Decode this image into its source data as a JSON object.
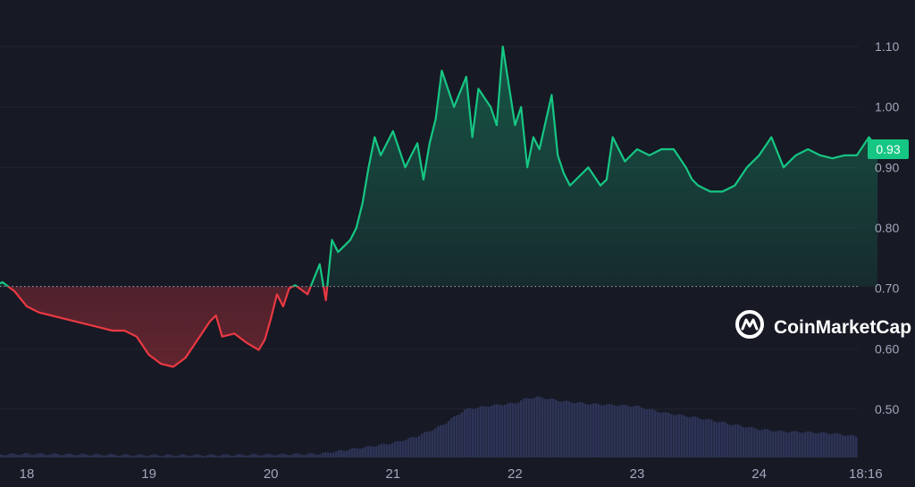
{
  "brand": {
    "name": "CoinMarketCap",
    "logo_icon": "coinmarketcap-logo-icon"
  },
  "colors": {
    "background": "#171924",
    "up": "#16c784",
    "down": "#ea3943",
    "volume": "#2d3457",
    "baseline": "#a1a7bb",
    "grid": "#222531",
    "badge": "#16c784"
  },
  "chart_data": {
    "type": "line",
    "title": "",
    "xlabel": "",
    "ylabel": "",
    "ylim": [
      0.42,
      1.14
    ],
    "yticks": [
      "1.10",
      "1.00",
      "0.90",
      "0.80",
      "0.70",
      "0.60",
      "0.50"
    ],
    "xticks": [
      "18",
      "19",
      "20",
      "21",
      "22",
      "23",
      "24",
      "18:16"
    ],
    "baseline": 0.703,
    "current_price": "0.93",
    "grid": true,
    "series": [
      {
        "x": [
          17.75,
          17.8,
          17.9,
          18.0,
          18.1,
          18.2,
          18.3,
          18.4,
          18.5,
          18.6,
          18.7,
          18.8,
          18.9,
          19.0,
          19.1,
          19.2,
          19.3,
          19.4,
          19.5,
          19.55,
          19.6,
          19.7,
          19.8,
          19.9,
          19.95,
          20.0,
          20.05,
          20.1,
          20.15,
          20.2,
          20.3,
          20.4,
          20.45,
          20.5,
          20.55,
          20.6,
          20.65,
          20.7,
          20.75,
          20.8,
          20.85,
          20.9,
          21.0,
          21.1,
          21.2,
          21.25,
          21.3,
          21.35,
          21.4,
          21.5,
          21.6,
          21.65,
          21.7,
          21.8,
          21.85,
          21.9,
          22.0,
          22.05,
          22.1,
          22.15,
          22.2,
          22.3,
          22.35,
          22.4,
          22.45,
          22.5,
          22.6,
          22.7,
          22.75,
          22.8,
          22.9,
          23.0,
          23.1,
          23.2,
          23.3,
          23.4,
          23.45,
          23.5,
          23.6,
          23.7,
          23.8,
          23.9,
          24.0,
          24.1,
          24.2,
          24.3,
          24.4,
          24.5,
          24.6,
          24.7,
          24.8,
          24.9,
          24.97
        ],
        "values": [
          0.705,
          0.71,
          0.695,
          0.67,
          0.66,
          0.655,
          0.65,
          0.645,
          0.64,
          0.635,
          0.63,
          0.63,
          0.62,
          0.59,
          0.575,
          0.57,
          0.585,
          0.615,
          0.645,
          0.655,
          0.62,
          0.625,
          0.61,
          0.598,
          0.615,
          0.65,
          0.69,
          0.67,
          0.7,
          0.705,
          0.69,
          0.74,
          0.68,
          0.78,
          0.76,
          0.77,
          0.78,
          0.8,
          0.84,
          0.9,
          0.95,
          0.92,
          0.96,
          0.9,
          0.94,
          0.88,
          0.94,
          0.98,
          1.06,
          1.0,
          1.05,
          0.95,
          1.03,
          1.0,
          0.97,
          1.1,
          0.97,
          1.0,
          0.9,
          0.95,
          0.93,
          1.02,
          0.92,
          0.89,
          0.87,
          0.88,
          0.9,
          0.87,
          0.88,
          0.95,
          0.91,
          0.93,
          0.92,
          0.93,
          0.93,
          0.9,
          0.88,
          0.87,
          0.86,
          0.86,
          0.87,
          0.9,
          0.92,
          0.95,
          0.9,
          0.92,
          0.93,
          0.92,
          0.915,
          0.92,
          0.92,
          0.95,
          0.93
        ]
      }
    ],
    "volume": {
      "x": [
        17.75,
        18.0,
        18.5,
        19.0,
        19.5,
        20.0,
        20.4,
        20.6,
        20.8,
        21.0,
        21.2,
        21.4,
        21.6,
        21.8,
        22.0,
        22.1,
        22.2,
        22.4,
        22.6,
        22.8,
        23.0,
        23.2,
        23.4,
        23.6,
        23.8,
        24.0,
        24.2,
        24.4,
        24.6,
        24.8,
        24.97
      ],
      "values": [
        0.425,
        0.426,
        0.425,
        0.424,
        0.424,
        0.425,
        0.426,
        0.432,
        0.438,
        0.444,
        0.455,
        0.473,
        0.5,
        0.506,
        0.51,
        0.518,
        0.52,
        0.513,
        0.509,
        0.507,
        0.505,
        0.495,
        0.489,
        0.482,
        0.474,
        0.467,
        0.463,
        0.462,
        0.46,
        0.455,
        0.454
      ]
    }
  }
}
